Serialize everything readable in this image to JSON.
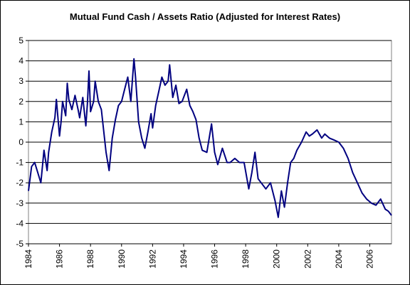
{
  "chart_data": {
    "type": "line",
    "title": "Mutual Fund Cash / Assets Ratio (Adjusted for Interest Rates)",
    "xlabel": "",
    "ylabel": "",
    "xlim": [
      1984,
      2007.4
    ],
    "ylim": [
      -5,
      5
    ],
    "y_ticks": [
      5,
      4,
      3,
      2,
      1,
      0,
      -1,
      -2,
      -3,
      -4,
      -5
    ],
    "x_ticks": [
      1984,
      1986,
      1988,
      1990,
      1992,
      1994,
      1996,
      1998,
      2000,
      2002,
      2004,
      2006
    ],
    "x_tick_labels": [
      "1984",
      "1986",
      "1988",
      "1990",
      "1992",
      "1994",
      "1996",
      "1998",
      "2000",
      "2002",
      "2004",
      "2006"
    ],
    "grid": "horizontal",
    "legend": "none",
    "line_color": "#000080",
    "grid_color": "#000000",
    "series": [
      {
        "x": [
          1984.0,
          1984.2,
          1984.4,
          1984.6,
          1984.8,
          1985.0,
          1985.2,
          1985.3,
          1985.5,
          1985.7,
          1985.8,
          1986.0,
          1986.1,
          1986.2,
          1986.4,
          1986.5,
          1986.6,
          1986.8,
          1987.0,
          1987.2,
          1987.3,
          1987.5,
          1987.7,
          1987.8,
          1987.9,
          1988.0,
          1988.2,
          1988.3,
          1988.5,
          1988.7,
          1988.9,
          1989.0,
          1989.2,
          1989.4,
          1989.6,
          1989.8,
          1990.0,
          1990.2,
          1990.4,
          1990.6,
          1990.8,
          1990.9,
          1991.1,
          1991.3,
          1991.5,
          1991.7,
          1991.9,
          1992.0,
          1992.2,
          1992.4,
          1992.6,
          1992.8,
          1993.0,
          1993.1,
          1993.3,
          1993.5,
          1993.7,
          1993.9,
          1994.2,
          1994.4,
          1994.6,
          1994.8,
          1995.0,
          1995.2,
          1995.5,
          1995.8,
          1996.0,
          1996.2,
          1996.5,
          1996.8,
          1997.0,
          1997.3,
          1997.6,
          1997.9,
          1998.2,
          1998.4,
          1998.6,
          1998.8,
          1999.0,
          1999.3,
          1999.6,
          1999.9,
          2000.1,
          2000.3,
          2000.5,
          2000.7,
          2000.9,
          2001.1,
          2001.3,
          2001.6,
          2001.9,
          2002.1,
          2002.3,
          2002.6,
          2002.9,
          2003.1,
          2003.4,
          2003.7,
          2004.0,
          2004.3,
          2004.6,
          2004.9,
          2005.2,
          2005.5,
          2005.8,
          2006.1,
          2006.4,
          2006.7,
          2007.0,
          2007.2,
          2007.4
        ],
        "values": [
          -2.4,
          -1.2,
          -1.0,
          -1.5,
          -2.0,
          -0.4,
          -1.4,
          -0.5,
          0.5,
          1.2,
          2.1,
          0.3,
          1.0,
          2.0,
          1.3,
          2.9,
          2.1,
          1.6,
          2.3,
          1.6,
          1.2,
          2.2,
          0.8,
          1.9,
          3.5,
          1.5,
          2.0,
          3.0,
          2.0,
          1.6,
          0.2,
          -0.5,
          -1.4,
          0.2,
          1.1,
          1.8,
          2.0,
          2.6,
          3.2,
          2.0,
          4.1,
          3.2,
          1.0,
          0.2,
          -0.3,
          0.5,
          1.4,
          0.7,
          1.8,
          2.5,
          3.2,
          2.8,
          3.0,
          3.8,
          2.2,
          2.8,
          1.9,
          2.0,
          2.6,
          1.8,
          1.5,
          1.1,
          0.2,
          -0.4,
          -0.5,
          0.9,
          -0.5,
          -1.1,
          -0.3,
          -1.0,
          -1.0,
          -0.8,
          -1.0,
          -1.0,
          -2.3,
          -1.5,
          -0.5,
          -1.8,
          -2.0,
          -2.3,
          -2.0,
          -2.9,
          -3.7,
          -2.4,
          -3.2,
          -2.0,
          -1.0,
          -0.8,
          -0.4,
          0.0,
          0.5,
          0.3,
          0.4,
          0.6,
          0.2,
          0.4,
          0.2,
          0.1,
          0.0,
          -0.3,
          -0.8,
          -1.5,
          -2.0,
          -2.5,
          -2.8,
          -3.0,
          -3.1,
          -2.8,
          -3.3,
          -3.4,
          -3.6
        ]
      }
    ]
  }
}
